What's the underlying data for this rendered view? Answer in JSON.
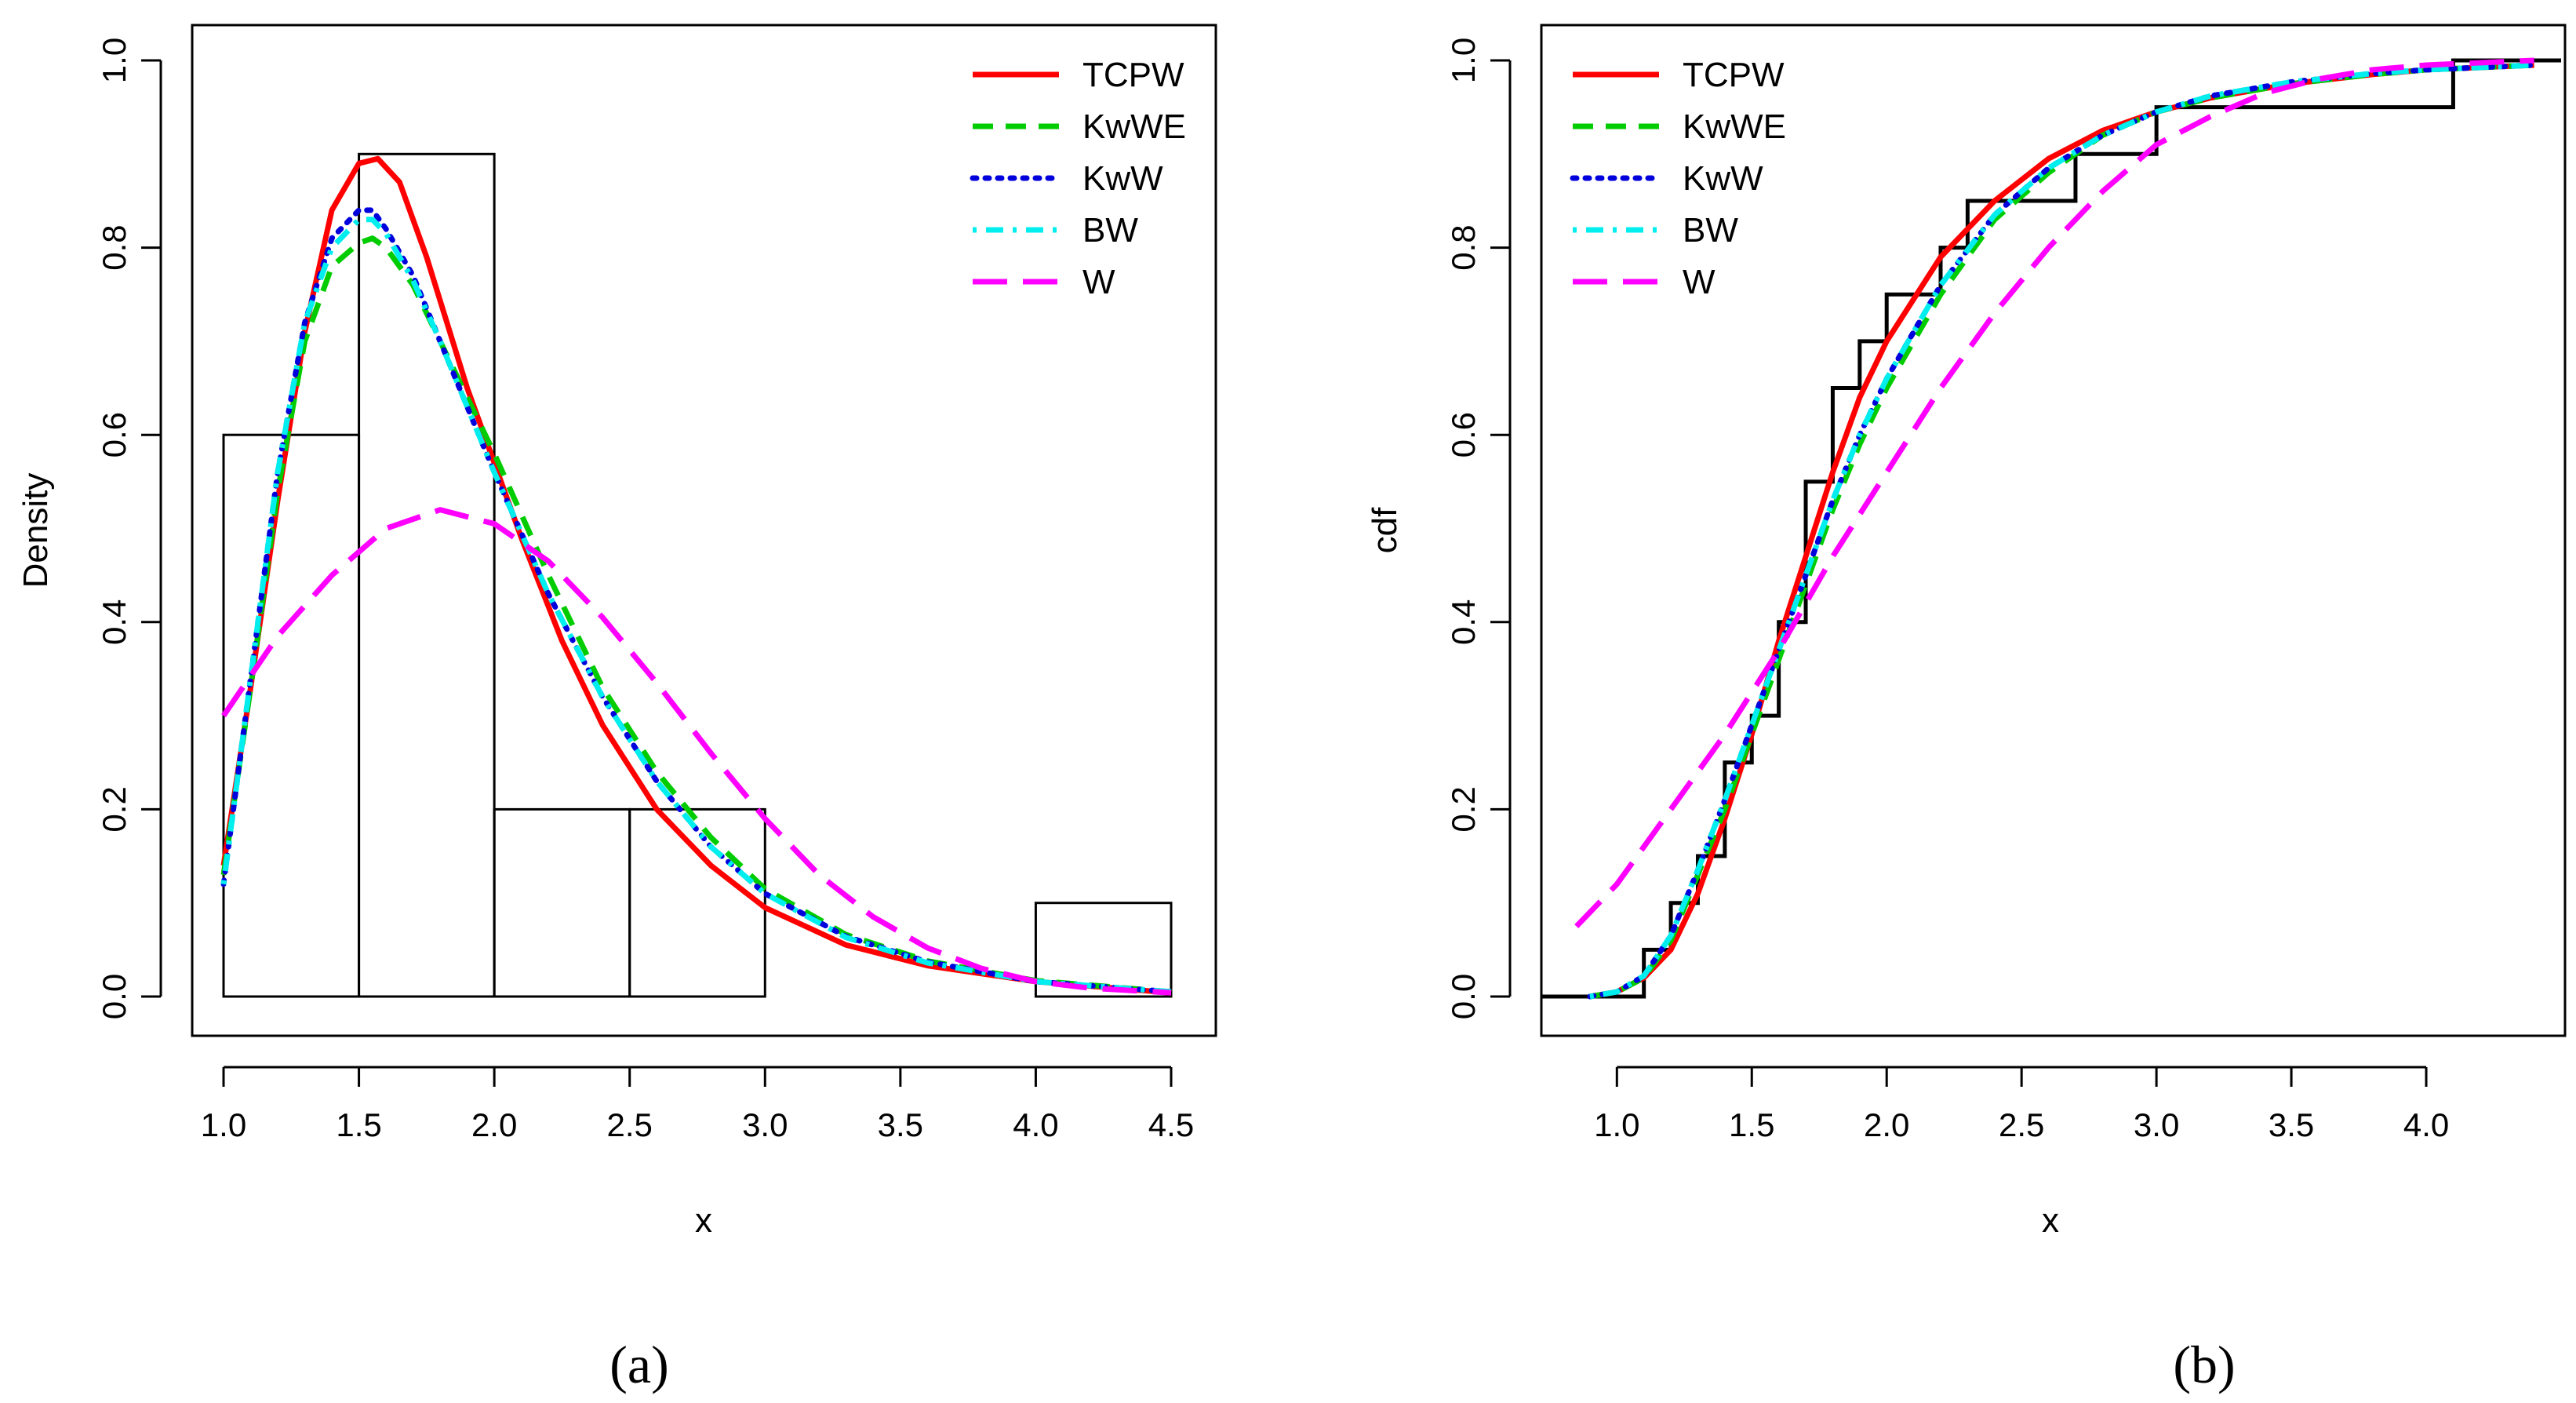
{
  "chart_data": [
    {
      "panel_label": "(a)",
      "type": "histogram+line",
      "title": "",
      "xlabel": "x",
      "ylabel": "Density",
      "xlim": [
        1.0,
        4.5
      ],
      "ylim": [
        0.0,
        1.0
      ],
      "xticks": [
        1.0,
        1.5,
        2.0,
        2.5,
        3.0,
        3.5,
        4.0,
        4.5
      ],
      "xtick_labels": [
        "1.0",
        "1.5",
        "2.0",
        "2.5",
        "3.0",
        "3.5",
        "4.0",
        "4.5"
      ],
      "yticks": [
        0.0,
        0.2,
        0.4,
        0.6,
        0.8,
        1.0
      ],
      "ytick_labels": [
        "0.0",
        "0.2",
        "0.4",
        "0.6",
        "0.8",
        "1.0"
      ],
      "grid": false,
      "legend_position": "top-right",
      "histogram": [
        {
          "x0": 1.0,
          "x1": 1.5,
          "density": 0.6
        },
        {
          "x0": 1.5,
          "x1": 2.0,
          "density": 0.9
        },
        {
          "x0": 2.0,
          "x1": 2.5,
          "density": 0.2
        },
        {
          "x0": 2.5,
          "x1": 3.0,
          "density": 0.2
        },
        {
          "x0": 3.0,
          "x1": 3.5,
          "density": 0.0
        },
        {
          "x0": 3.5,
          "x1": 4.0,
          "density": 0.0
        },
        {
          "x0": 4.0,
          "x1": 4.5,
          "density": 0.1
        }
      ],
      "series": [
        {
          "name": "TCPW",
          "color": "#ff0000",
          "dash": "solid",
          "x": [
            1.0,
            1.1,
            1.2,
            1.3,
            1.4,
            1.5,
            1.57,
            1.65,
            1.75,
            1.9,
            2.0,
            2.1,
            2.25,
            2.4,
            2.6,
            2.8,
            3.0,
            3.3,
            3.6,
            4.0,
            4.5
          ],
          "y": [
            0.14,
            0.33,
            0.53,
            0.71,
            0.84,
            0.89,
            0.895,
            0.87,
            0.79,
            0.65,
            0.57,
            0.49,
            0.38,
            0.29,
            0.2,
            0.14,
            0.095,
            0.055,
            0.033,
            0.016,
            0.004
          ]
        },
        {
          "name": "KwWE",
          "color": "#00cc00",
          "dash": "dashed",
          "x": [
            1.0,
            1.1,
            1.2,
            1.3,
            1.4,
            1.5,
            1.55,
            1.6,
            1.7,
            1.8,
            1.9,
            2.0,
            2.2,
            2.4,
            2.6,
            2.8,
            3.0,
            3.3,
            3.6,
            4.0,
            4.5
          ],
          "y": [
            0.13,
            0.33,
            0.54,
            0.7,
            0.78,
            0.805,
            0.81,
            0.8,
            0.76,
            0.7,
            0.64,
            0.58,
            0.45,
            0.33,
            0.24,
            0.17,
            0.115,
            0.066,
            0.038,
            0.017,
            0.005
          ]
        },
        {
          "name": "KwW",
          "color": "#0000dd",
          "dash": "dotted",
          "x": [
            1.0,
            1.1,
            1.2,
            1.3,
            1.4,
            1.5,
            1.55,
            1.6,
            1.7,
            1.8,
            1.9,
            2.0,
            2.2,
            2.4,
            2.6,
            2.8,
            3.0,
            3.3,
            3.6,
            4.0,
            4.5
          ],
          "y": [
            0.12,
            0.34,
            0.56,
            0.72,
            0.81,
            0.84,
            0.84,
            0.82,
            0.77,
            0.7,
            0.63,
            0.56,
            0.43,
            0.32,
            0.23,
            0.16,
            0.11,
            0.064,
            0.037,
            0.016,
            0.005
          ]
        },
        {
          "name": "BW",
          "color": "#00eeee",
          "dash": "dashdot",
          "x": [
            1.0,
            1.1,
            1.2,
            1.3,
            1.4,
            1.5,
            1.55,
            1.6,
            1.7,
            1.8,
            1.9,
            2.0,
            2.2,
            2.4,
            2.6,
            2.8,
            3.0,
            3.3,
            3.6,
            4.0,
            4.5
          ],
          "y": [
            0.12,
            0.34,
            0.56,
            0.72,
            0.8,
            0.83,
            0.83,
            0.815,
            0.765,
            0.7,
            0.63,
            0.56,
            0.43,
            0.32,
            0.23,
            0.16,
            0.11,
            0.063,
            0.036,
            0.016,
            0.005
          ]
        },
        {
          "name": "W",
          "color": "#ff00ff",
          "dash": "longdash",
          "x": [
            1.0,
            1.2,
            1.4,
            1.6,
            1.8,
            2.0,
            2.2,
            2.4,
            2.6,
            2.8,
            3.0,
            3.2,
            3.4,
            3.6,
            3.8,
            4.0,
            4.2,
            4.5
          ],
          "y": [
            0.3,
            0.385,
            0.45,
            0.5,
            0.52,
            0.505,
            0.465,
            0.405,
            0.335,
            0.26,
            0.19,
            0.13,
            0.085,
            0.052,
            0.03,
            0.016,
            0.009,
            0.004
          ]
        }
      ]
    },
    {
      "panel_label": "(b)",
      "type": "step+line",
      "title": "",
      "xlabel": "x",
      "ylabel": "cdf",
      "xlim": [
        0.72,
        4.5
      ],
      "ylim": [
        0.0,
        1.0
      ],
      "xticks": [
        1.0,
        1.5,
        2.0,
        2.5,
        3.0,
        3.5,
        4.0
      ],
      "xtick_labels": [
        "1.0",
        "1.5",
        "2.0",
        "2.5",
        "3.0",
        "3.5",
        "4.0"
      ],
      "yticks": [
        0.0,
        0.2,
        0.4,
        0.6,
        0.8,
        1.0
      ],
      "ytick_labels": [
        "0.0",
        "0.2",
        "0.4",
        "0.6",
        "0.8",
        "1.0"
      ],
      "grid": false,
      "legend_position": "top-left",
      "ecdf": {
        "x": [
          0.72,
          1.1,
          1.2,
          1.3,
          1.4,
          1.5,
          1.6,
          1.7,
          1.8,
          1.9,
          2.0,
          2.2,
          2.3,
          2.7,
          3.0,
          4.1,
          4.5
        ],
        "y": [
          0.0,
          0.05,
          0.1,
          0.15,
          0.25,
          0.3,
          0.4,
          0.55,
          0.65,
          0.7,
          0.75,
          0.8,
          0.85,
          0.9,
          0.95,
          1.0,
          1.0
        ]
      },
      "series": [
        {
          "name": "TCPW",
          "color": "#ff0000",
          "dash": "solid",
          "x": [
            0.9,
            1.0,
            1.1,
            1.2,
            1.3,
            1.4,
            1.5,
            1.6,
            1.7,
            1.8,
            1.9,
            2.0,
            2.2,
            2.4,
            2.6,
            2.8,
            3.0,
            3.2,
            3.5,
            3.8,
            4.0,
            4.4
          ],
          "y": [
            0.0,
            0.005,
            0.02,
            0.05,
            0.11,
            0.19,
            0.28,
            0.38,
            0.47,
            0.56,
            0.64,
            0.7,
            0.79,
            0.85,
            0.895,
            0.925,
            0.945,
            0.96,
            0.975,
            0.985,
            0.99,
            0.995
          ]
        },
        {
          "name": "KwWE",
          "color": "#00cc00",
          "dash": "dashed",
          "x": [
            0.9,
            1.0,
            1.1,
            1.2,
            1.3,
            1.4,
            1.5,
            1.6,
            1.7,
            1.8,
            1.9,
            2.0,
            2.2,
            2.4,
            2.6,
            2.8,
            3.0,
            3.2,
            3.5,
            3.8,
            4.0,
            4.4
          ],
          "y": [
            0.0,
            0.005,
            0.02,
            0.06,
            0.13,
            0.2,
            0.28,
            0.36,
            0.44,
            0.52,
            0.59,
            0.65,
            0.75,
            0.83,
            0.88,
            0.92,
            0.945,
            0.96,
            0.975,
            0.985,
            0.99,
            0.995
          ]
        },
        {
          "name": "KwW",
          "color": "#0000dd",
          "dash": "dotted",
          "x": [
            0.9,
            1.0,
            1.1,
            1.2,
            1.3,
            1.4,
            1.5,
            1.6,
            1.7,
            1.8,
            1.9,
            2.0,
            2.2,
            2.4,
            2.6,
            2.8,
            3.0,
            3.2,
            3.5,
            3.8,
            4.0,
            4.4
          ],
          "y": [
            0.0,
            0.005,
            0.022,
            0.065,
            0.135,
            0.21,
            0.29,
            0.37,
            0.45,
            0.53,
            0.6,
            0.66,
            0.76,
            0.835,
            0.885,
            0.92,
            0.945,
            0.962,
            0.977,
            0.986,
            0.99,
            0.995
          ]
        },
        {
          "name": "BW",
          "color": "#00eeee",
          "dash": "dashdot",
          "x": [
            0.9,
            1.0,
            1.1,
            1.2,
            1.3,
            1.4,
            1.5,
            1.6,
            1.7,
            1.8,
            1.9,
            2.0,
            2.2,
            2.4,
            2.6,
            2.8,
            3.0,
            3.2,
            3.5,
            3.8,
            4.0,
            4.4
          ],
          "y": [
            0.0,
            0.005,
            0.022,
            0.065,
            0.135,
            0.21,
            0.29,
            0.37,
            0.45,
            0.53,
            0.6,
            0.66,
            0.76,
            0.835,
            0.885,
            0.92,
            0.945,
            0.962,
            0.977,
            0.986,
            0.99,
            0.995
          ]
        },
        {
          "name": "W",
          "color": "#ff00ff",
          "dash": "longdash",
          "x": [
            0.85,
            1.0,
            1.2,
            1.4,
            1.6,
            1.8,
            2.0,
            2.2,
            2.4,
            2.6,
            2.8,
            3.0,
            3.2,
            3.4,
            3.6,
            3.8,
            4.0,
            4.4
          ],
          "y": [
            0.075,
            0.12,
            0.2,
            0.28,
            0.37,
            0.47,
            0.56,
            0.65,
            0.73,
            0.8,
            0.86,
            0.91,
            0.94,
            0.965,
            0.98,
            0.99,
            0.995,
            1.0
          ]
        }
      ]
    }
  ]
}
